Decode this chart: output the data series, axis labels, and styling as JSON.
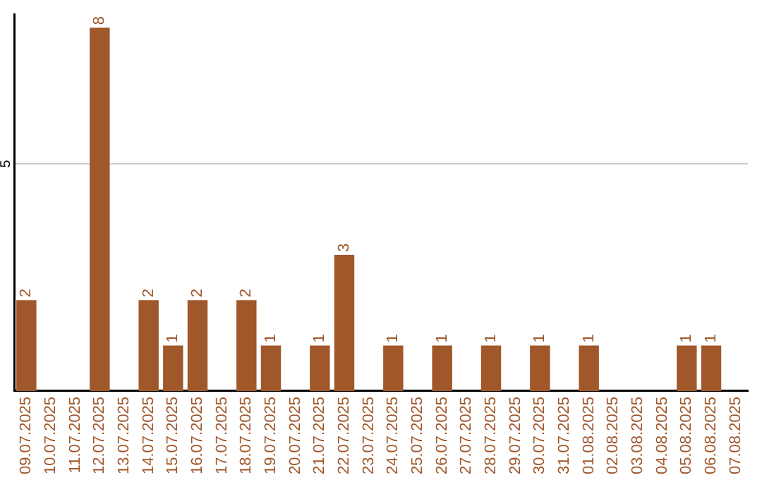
{
  "chart_data": {
    "type": "bar",
    "categories": [
      "09.07.2025",
      "10.07.2025",
      "11.07.2025",
      "12.07.2025",
      "13.07.2025",
      "14.07.2025",
      "15.07.2025",
      "16.07.2025",
      "17.07.2025",
      "18.07.2025",
      "19.07.2025",
      "20.07.2025",
      "21.07.2025",
      "22.07.2025",
      "23.07.2025",
      "24.07.2025",
      "25.07.2025",
      "26.07.2025",
      "27.07.2025",
      "28.07.2025",
      "29.07.2025",
      "30.07.2025",
      "31.07.2025",
      "01.08.2025",
      "02.08.2025",
      "03.08.2025",
      "04.08.2025",
      "05.08.2025",
      "06.08.2025",
      "07.08.2025"
    ],
    "values": [
      2,
      0,
      0,
      8,
      0,
      2,
      1,
      2,
      0,
      2,
      1,
      0,
      1,
      3,
      0,
      1,
      0,
      1,
      0,
      1,
      0,
      1,
      0,
      1,
      0,
      0,
      0,
      1,
      1,
      0
    ],
    "value_labels": [
      "2",
      null,
      null,
      "8",
      null,
      "2",
      "1",
      "2",
      null,
      "2",
      "1",
      null,
      "1",
      "3",
      null,
      "1",
      null,
      "1",
      null,
      "1",
      null,
      "1",
      null,
      "1",
      null,
      null,
      null,
      "1",
      "1",
      null
    ],
    "color": "#a0572a",
    "ylim": [
      0,
      8.3
    ],
    "yticks": [
      5
    ],
    "grid": "y",
    "legend": false
  }
}
